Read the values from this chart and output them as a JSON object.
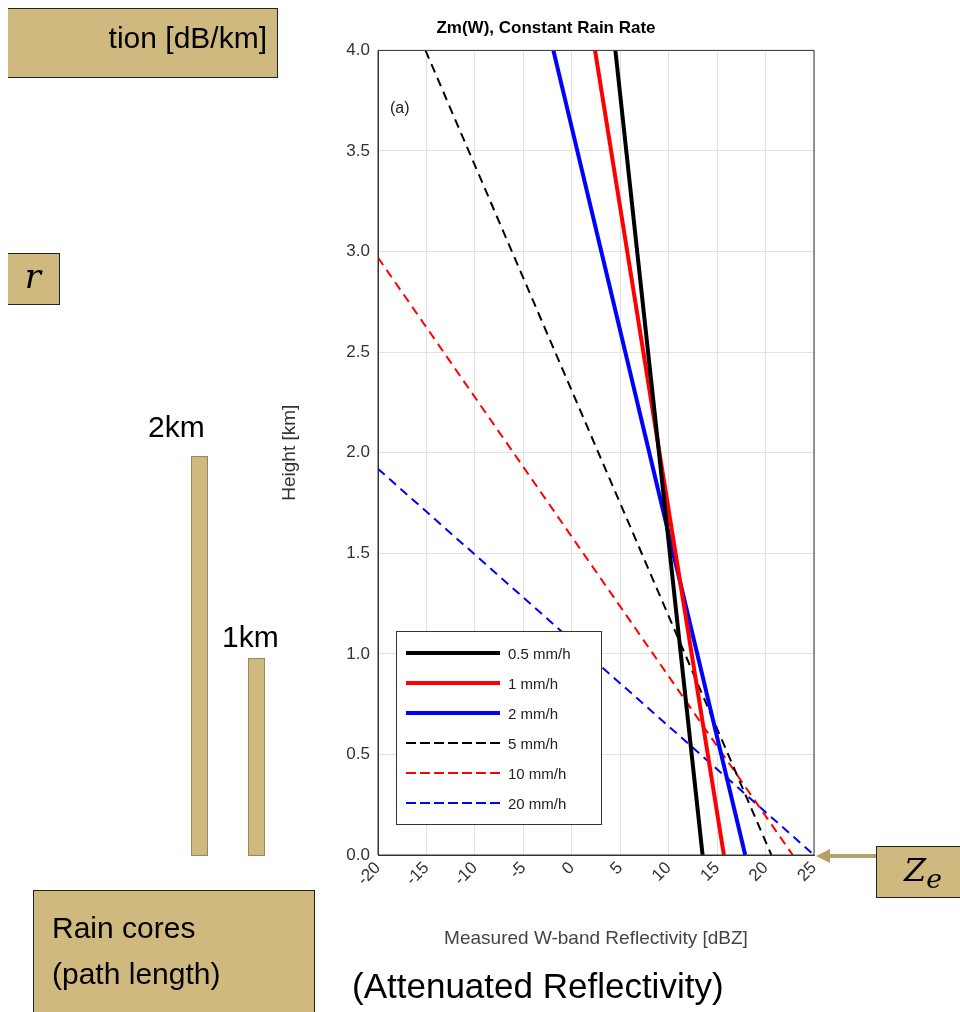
{
  "chart_data": {
    "type": "line",
    "title": "Zm(W), Constant Rain Rate",
    "xlabel": "Measured W-band Reflectivity [dBZ]",
    "ylabel": "Height [km]",
    "xlim": [
      -20,
      25
    ],
    "ylim": [
      0,
      4
    ],
    "xticks": [
      -20,
      -15,
      -10,
      -5,
      0,
      5,
      10,
      15,
      20,
      25
    ],
    "yticks": [
      {
        "value": 0,
        "label": "0.0"
      },
      {
        "value": 0.5,
        "label": "0.5"
      },
      {
        "value": 1,
        "label": "1.0"
      },
      {
        "value": 1.5,
        "label": "1.5"
      },
      {
        "value": 2,
        "label": "2.0"
      },
      {
        "value": 2.5,
        "label": "2.5"
      },
      {
        "value": 3,
        "label": "3.0"
      },
      {
        "value": 3.5,
        "label": "3.5"
      },
      {
        "value": 4,
        "label": "4.0"
      }
    ],
    "grid": true,
    "legend": "bottom left",
    "series": [
      {
        "name": "0.5 mm/h",
        "color": "#000000",
        "line_style": "solid",
        "x": [
          4.5,
          13.5
        ],
        "values": [
          4.0,
          0.0
        ]
      },
      {
        "name": "1 mm/h",
        "color": "#ff0000",
        "line_style": "solid",
        "x": [
          2.4,
          15.7
        ],
        "values": [
          4.0,
          0.0
        ]
      },
      {
        "name": "2 mm/h",
        "color": "#0000ff",
        "line_style": "solid",
        "x": [
          -1.9,
          17.9
        ],
        "values": [
          4.0,
          0.0
        ]
      },
      {
        "name": "5 mm/h",
        "color": "#000000",
        "line_style": "dashed",
        "x": [
          -15.1,
          20.6
        ],
        "values": [
          4.0,
          0.0
        ]
      },
      {
        "name": "10 mm/h",
        "color": "#ff0000",
        "line_style": "dashed",
        "x": [
          -20,
          22.8
        ],
        "values": [
          2.97,
          0.0
        ]
      },
      {
        "name": "20 mm/h",
        "color": "#0000ff",
        "line_style": "dashed",
        "x": [
          -20,
          25
        ],
        "values": [
          1.92,
          0.0
        ]
      }
    ],
    "annotations": [
      "(a)",
      "tion [dB/km]",
      "r",
      "2km",
      "1km",
      "Rain cores (path length)",
      "(Attenuated Reflectivity)",
      "Z$_{e}$"
    ]
  }
}
